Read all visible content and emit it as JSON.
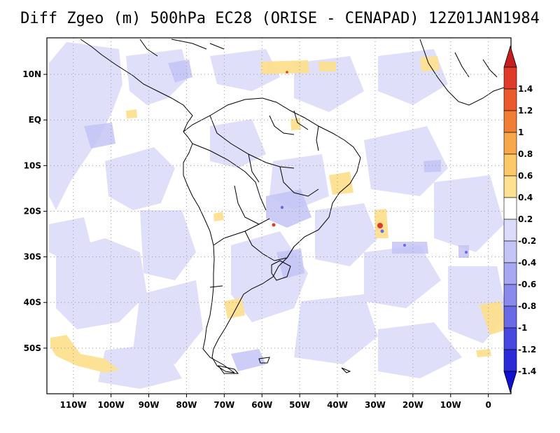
{
  "title": "Diff Zgeo (m) 500hPa EC28 (ORISE - CENAPAD) 12Z01JAN1984",
  "map": {
    "lon_range": [
      -117,
      6
    ],
    "lat_range": [
      -60,
      18
    ],
    "grid": true,
    "x_ticks": [
      {
        "value": -110,
        "label": "110W"
      },
      {
        "value": -100,
        "label": "100W"
      },
      {
        "value": -90,
        "label": "90W"
      },
      {
        "value": -80,
        "label": "80W"
      },
      {
        "value": -70,
        "label": "70W"
      },
      {
        "value": -60,
        "label": "60W"
      },
      {
        "value": -50,
        "label": "50W"
      },
      {
        "value": -40,
        "label": "40W"
      },
      {
        "value": -30,
        "label": "30W"
      },
      {
        "value": -20,
        "label": "20W"
      },
      {
        "value": -10,
        "label": "10W"
      },
      {
        "value": 0,
        "label": "0"
      }
    ],
    "y_ticks": [
      {
        "value": 10,
        "label": "10N"
      },
      {
        "value": 0,
        "label": "EQ"
      },
      {
        "value": -10,
        "label": "10S"
      },
      {
        "value": -20,
        "label": "20S"
      },
      {
        "value": -30,
        "label": "30S"
      },
      {
        "value": -40,
        "label": "40S"
      },
      {
        "value": -50,
        "label": "50S"
      }
    ]
  },
  "colorbar": {
    "levels": [
      {
        "label": "1.4",
        "color": "#e03a2a"
      },
      {
        "label": "1.2",
        "color": "#ea5a2c"
      },
      {
        "label": "1",
        "color": "#f07e34"
      },
      {
        "label": "0.8",
        "color": "#f7a84a"
      },
      {
        "label": "0.6",
        "color": "#fcc868"
      },
      {
        "label": "0.4",
        "color": "#fde090"
      },
      {
        "label": "0.2",
        "color": "#ffffff"
      },
      {
        "label": "-0.2",
        "color": "#dcdcfa"
      },
      {
        "label": "-0.4",
        "color": "#c4c4f6"
      },
      {
        "label": "-0.6",
        "color": "#a8a8f2"
      },
      {
        "label": "-0.8",
        "color": "#8a8aec"
      },
      {
        "label": "-1",
        "color": "#6a6ae6"
      },
      {
        "label": "-1.2",
        "color": "#4848e0"
      },
      {
        "label": "-1.4",
        "color": "#2a2ad8"
      }
    ],
    "top_triangle_color": "#c42020",
    "bottom_triangle_color": "#1010d0"
  }
}
